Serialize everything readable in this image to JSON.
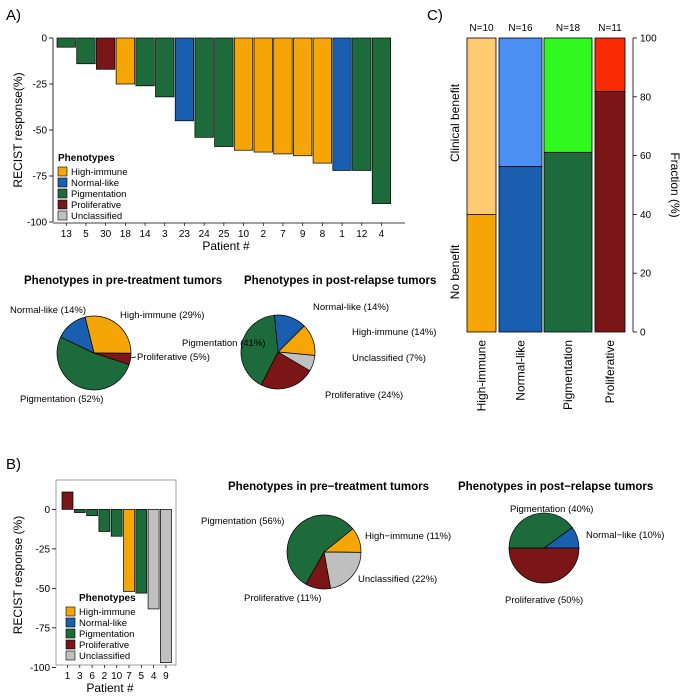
{
  "colors": {
    "High-immune": "#f5a506",
    "High-immune-light": "#fecb70",
    "Normal-like": "#1a5eb0",
    "Normal-like-light": "#4b8ff5",
    "Pigmentation": "#1d6a3a",
    "Pigmentation-light": "#2ff81e",
    "Proliferative": "#7a1617",
    "Proliferative-light": "#fa2a05",
    "Unclassified": "#c0c0c0"
  },
  "panels": {
    "a": "A)",
    "b": "B)",
    "c": "C)"
  },
  "legend": {
    "title": "Phenotypes",
    "items": [
      "High-immune",
      "Normal-like",
      "Pigmentation",
      "Proliferative",
      "Unclassified"
    ]
  },
  "chart_data": [
    {
      "id": "A_waterfall",
      "type": "bar",
      "ylabel": "RECIST response(%)",
      "xlabel": "Patient #",
      "ylim": [
        -100,
        0
      ],
      "yticks": [
        "0",
        "-25",
        "-50",
        "-75",
        "-100"
      ],
      "ytick_values": [
        0,
        -25,
        -50,
        -75,
        -100
      ],
      "categories": [
        "13",
        "5",
        "30",
        "18",
        "14",
        "3",
        "23",
        "24",
        "25",
        "10",
        "2",
        "7",
        "9",
        "8",
        "1",
        "12",
        "4"
      ],
      "values": [
        -5,
        -14,
        -17,
        -25,
        -26,
        -32,
        -45,
        -54,
        -59,
        -61,
        -62,
        -63,
        -64,
        -68,
        -72,
        -72,
        -90
      ],
      "phenotypes": [
        "Pigmentation",
        "Pigmentation",
        "Proliferative",
        "High-immune",
        "Pigmentation",
        "Pigmentation",
        "Normal-like",
        "Pigmentation",
        "Pigmentation",
        "High-immune",
        "High-immune",
        "High-immune",
        "High-immune",
        "High-immune",
        "Normal-like",
        "Pigmentation",
        "Pigmentation"
      ]
    },
    {
      "id": "A_pie_pre",
      "type": "pie",
      "title": "Phenotypes in pre-treatment tumors",
      "labels": [
        "High-immune (29%)",
        "Proliferative (5%)",
        "Pigmentation (52%)",
        "Normal-like (14%)"
      ],
      "values": [
        29,
        5,
        52,
        14
      ],
      "phenotypes": [
        "High-immune",
        "Proliferative",
        "Pigmentation",
        "Normal-like"
      ]
    },
    {
      "id": "A_pie_post",
      "type": "pie",
      "title": "Phenotypes in post-relapse tumors",
      "labels": [
        "High-immune (14%)",
        "Unclassified (7%)",
        "Proliferative (24%)",
        "Pigmentation (41%)",
        "Normal-like (14%)"
      ],
      "values": [
        14,
        7,
        24,
        41,
        14
      ],
      "phenotypes": [
        "High-immune",
        "Unclassified",
        "Proliferative",
        "Pigmentation",
        "Normal-like"
      ]
    },
    {
      "id": "B_waterfall",
      "type": "bar",
      "ylabel": "RECIST response (%)",
      "xlabel": "Patient #",
      "ylim": [
        -100,
        15
      ],
      "yticks": [
        "0",
        "-25",
        "-50",
        "-75",
        "-100"
      ],
      "ytick_values": [
        0,
        -25,
        -50,
        -75,
        -100
      ],
      "categories": [
        "1",
        "3",
        "6",
        "2",
        "10",
        "7",
        "5",
        "4",
        "9"
      ],
      "values": [
        11,
        -2,
        -4,
        -14,
        -17,
        -52,
        -53,
        -63,
        -97
      ],
      "phenotypes": [
        "Proliferative",
        "Pigmentation",
        "Pigmentation",
        "Pigmentation",
        "Pigmentation",
        "High-immune",
        "Pigmentation",
        "Unclassified",
        "Unclassified"
      ]
    },
    {
      "id": "B_pie_pre",
      "type": "pie",
      "title": "Phenotypes in pre−treatment tumors",
      "labels": [
        "High−immune (11%)",
        "Unclassified (22%)",
        "Proliferative (11%)",
        "Pigmentation (56%)"
      ],
      "values": [
        11,
        22,
        11,
        56
      ],
      "phenotypes": [
        "High-immune",
        "Unclassified",
        "Proliferative",
        "Pigmentation"
      ]
    },
    {
      "id": "B_pie_post",
      "type": "pie",
      "title": "Phenotypes in post−relapse tumors",
      "labels": [
        "Normal−like (10%)",
        "Proliferative (50%)",
        "Pigmentation (40%)"
      ],
      "values": [
        10,
        50,
        40
      ],
      "phenotypes": [
        "Normal-like",
        "Proliferative",
        "Pigmentation"
      ]
    },
    {
      "id": "C_stacked",
      "type": "bar",
      "ylabel": "Fraction (%)",
      "ylim": [
        0,
        100
      ],
      "yticks": [
        "0",
        "20",
        "40",
        "60",
        "80",
        "100"
      ],
      "ytick_values": [
        0,
        20,
        40,
        60,
        80,
        100
      ],
      "categories": [
        "High-immune",
        "Normal-like",
        "Pigmentation",
        "Proliferative"
      ],
      "n_labels": [
        "N=10",
        "N=16",
        "N=18",
        "N=11"
      ],
      "series": [
        {
          "name": "No benefit",
          "values": [
            40,
            56.25,
            61.1,
            81.8
          ]
        },
        {
          "name": "Clinical benefit",
          "values": [
            60,
            43.75,
            38.9,
            18.2
          ]
        }
      ],
      "side_labels": [
        "Clinical benefit",
        "No benefit"
      ]
    }
  ]
}
